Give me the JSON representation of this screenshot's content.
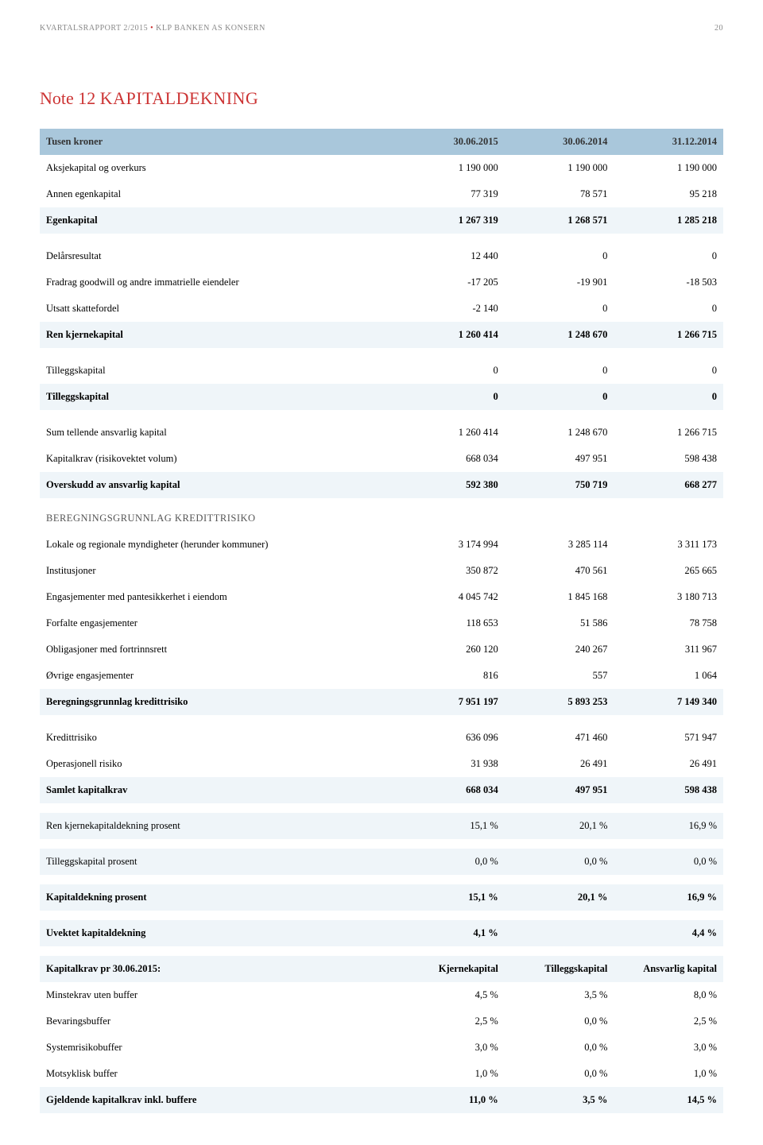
{
  "header": {
    "left_a": "KVARTALSRAPPORT 2/2015",
    "left_b": "KLP BANKEN AS KONSERN",
    "page": "20"
  },
  "title": {
    "prefix": "Note 12",
    "name": "KAPITALDEKNING"
  },
  "cols": [
    "Tusen kroner",
    "30.06.2015",
    "30.06.2014",
    "31.12.2014"
  ],
  "rows": [
    {
      "l": "Aksjekapital og overkurs",
      "a": "1 190 000",
      "b": "1 190 000",
      "c": "1 190 000"
    },
    {
      "l": "Annen egenkapital",
      "a": "77 319",
      "b": "78 571",
      "c": "95 218"
    },
    {
      "l": "Egenkapital",
      "a": "1 267 319",
      "b": "1 268 571",
      "c": "1 285 218",
      "bold": true,
      "shade": true
    },
    {
      "spacer": true
    },
    {
      "l": "Delårsresultat",
      "a": "12 440",
      "b": "0",
      "c": "0"
    },
    {
      "l": "Fradrag goodwill og andre immatrielle eiendeler",
      "a": "-17 205",
      "b": "-19 901",
      "c": "-18 503"
    },
    {
      "l": "Utsatt skattefordel",
      "a": "-2 140",
      "b": "0",
      "c": "0"
    },
    {
      "l": "Ren kjernekapital",
      "a": "1 260 414",
      "b": "1 248 670",
      "c": "1 266 715",
      "bold": true,
      "shade": true
    },
    {
      "spacer": true
    },
    {
      "l": "Tilleggskapital",
      "a": "0",
      "b": "0",
      "c": "0"
    },
    {
      "l": "Tilleggskapital",
      "a": "0",
      "b": "0",
      "c": "0",
      "bold": true,
      "shade": true
    },
    {
      "spacer": true
    },
    {
      "l": "Sum tellende ansvarlig kapital",
      "a": "1 260 414",
      "b": "1 248 670",
      "c": "1 266 715"
    },
    {
      "l": "Kapitalkrav (risikovektet volum)",
      "a": "668 034",
      "b": "497 951",
      "c": "598 438"
    },
    {
      "l": "Overskudd av ansvarlig kapital",
      "a": "592 380",
      "b": "750 719",
      "c": "668 277",
      "bold": true,
      "shade": true
    },
    {
      "l": "BEREGNINGSGRUNNLAG KREDITTRISIKO",
      "section": true
    },
    {
      "l": "Lokale og regionale myndigheter (herunder kommuner)",
      "a": "3 174 994",
      "b": "3 285 114",
      "c": "3 311 173"
    },
    {
      "l": "Institusjoner",
      "a": "350 872",
      "b": "470 561",
      "c": "265 665"
    },
    {
      "l": "Engasjementer med pantesikkerhet i eiendom",
      "a": "4 045 742",
      "b": "1 845 168",
      "c": "3 180 713"
    },
    {
      "l": "Forfalte engasjementer",
      "a": "118 653",
      "b": "51 586",
      "c": "78 758"
    },
    {
      "l": "Obligasjoner med fortrinnsrett",
      "a": "260 120",
      "b": "240 267",
      "c": "311 967"
    },
    {
      "l": "Øvrige engasjementer",
      "a": "816",
      "b": "557",
      "c": "1 064"
    },
    {
      "l": "Beregningsgrunnlag kredittrisiko",
      "a": "7 951 197",
      "b": "5 893 253",
      "c": "7 149 340",
      "bold": true,
      "shade": true
    },
    {
      "spacer": true
    },
    {
      "l": "Kredittrisiko",
      "a": "636 096",
      "b": "471 460",
      "c": "571 947"
    },
    {
      "l": "Operasjonell risiko",
      "a": "31 938",
      "b": "26 491",
      "c": "26 491"
    },
    {
      "l": "Samlet kapitalkrav",
      "a": "668 034",
      "b": "497 951",
      "c": "598 438",
      "bold": true,
      "shade": true
    },
    {
      "spacer": true
    },
    {
      "l": "Ren kjernekapitaldekning prosent",
      "a": "15,1 %",
      "b": "20,1 %",
      "c": "16,9 %",
      "shade": true
    },
    {
      "spacer": true
    },
    {
      "l": "Tilleggskapital prosent",
      "a": "0,0 %",
      "b": "0,0 %",
      "c": "0,0 %",
      "shade": true
    },
    {
      "spacer": true
    },
    {
      "l": "Kapitaldekning prosent",
      "a": "15,1 %",
      "b": "20,1 %",
      "c": "16,9 %",
      "bold": true,
      "shade": true
    },
    {
      "spacer": true
    },
    {
      "l": "Uvektet kapitaldekning",
      "a": "4,1 %",
      "b": "",
      "c": "4,4 %",
      "bold": true,
      "shade": true
    },
    {
      "spacer": true
    },
    {
      "l": "Kapitalkrav pr 30.06.2015:",
      "a": "Kjernekapital",
      "b": "Tilleggskapital",
      "c": "Ansvarlig kapital",
      "bold": true,
      "shade": true
    },
    {
      "l": "Minstekrav uten buffer",
      "a": "4,5 %",
      "b": "3,5 %",
      "c": "8,0 %"
    },
    {
      "l": "Bevaringsbuffer",
      "a": "2,5 %",
      "b": "0,0 %",
      "c": "2,5 %"
    },
    {
      "l": "Systemrisikobuffer",
      "a": "3,0 %",
      "b": "0,0 %",
      "c": "3,0 %"
    },
    {
      "l": "Motsyklisk buffer",
      "a": "1,0 %",
      "b": "0,0 %",
      "c": "1,0 %"
    },
    {
      "l": "Gjeldende kapitalkrav inkl. buffere",
      "a": "11,0 %",
      "b": "3,5 %",
      "c": "14,5 %",
      "bold": true,
      "shade": true
    }
  ]
}
